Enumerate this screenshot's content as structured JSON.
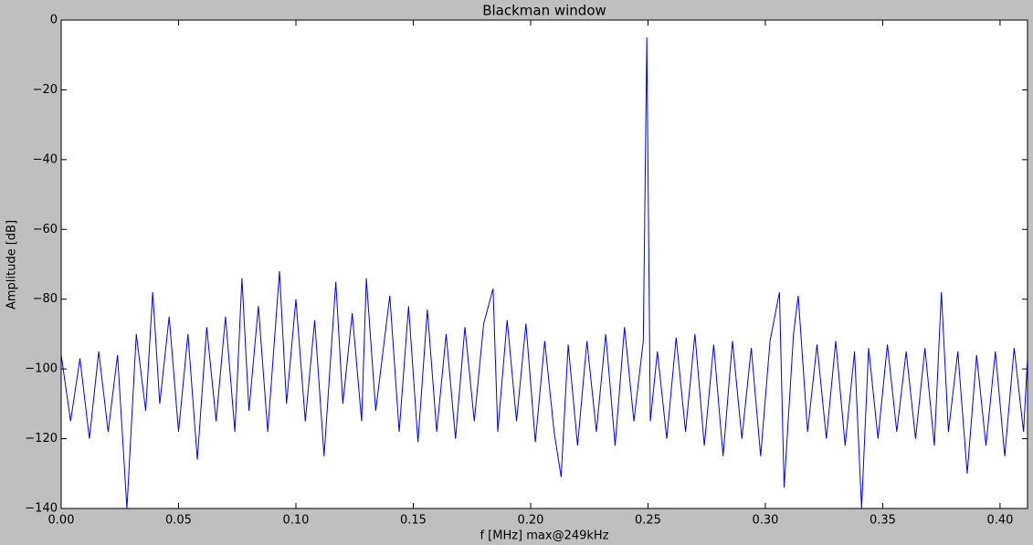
{
  "chart_data": {
    "type": "line",
    "title": "Blackman window",
    "x_label": "f [MHz] max@249kHz",
    "y_label": "Amplitude [dB]",
    "x": [
      0,
      0.004,
      0.008,
      0.012,
      0.016,
      0.02,
      0.024,
      0.028,
      0.032,
      0.036,
      0.039,
      0.042,
      0.046,
      0.05,
      0.054,
      0.058,
      0.062,
      0.066,
      0.07,
      0.074,
      0.077,
      0.08,
      0.084,
      0.088,
      0.093,
      0.096,
      0.1,
      0.104,
      0.108,
      0.112,
      0.117,
      0.12,
      0.124,
      0.128,
      0.13,
      0.134,
      0.14,
      0.144,
      0.148,
      0.152,
      0.156,
      0.16,
      0.164,
      0.168,
      0.172,
      0.176,
      0.18,
      0.184,
      0.186,
      0.19,
      0.194,
      0.198,
      0.202,
      0.206,
      0.21,
      0.213,
      0.216,
      0.22,
      0.224,
      0.228,
      0.232,
      0.236,
      0.24,
      0.244,
      0.248,
      0.2495,
      0.251,
      0.254,
      0.258,
      0.262,
      0.266,
      0.27,
      0.274,
      0.278,
      0.282,
      0.286,
      0.29,
      0.294,
      0.298,
      0.302,
      0.306,
      0.308,
      0.312,
      0.314,
      0.318,
      0.322,
      0.326,
      0.33,
      0.334,
      0.338,
      0.341,
      0.344,
      0.348,
      0.352,
      0.356,
      0.36,
      0.364,
      0.368,
      0.372,
      0.375,
      0.378,
      0.382,
      0.386,
      0.39,
      0.394,
      0.398,
      0.402,
      0.406,
      0.41,
      0.4117
    ],
    "series": [
      {
        "color": "#0000ff",
        "values": [
          -96,
          -115,
          -97,
          -120,
          -95,
          -118,
          -96,
          -140,
          -90,
          -112,
          -78,
          -110,
          -85,
          -118,
          -90,
          -126,
          -88,
          -115,
          -85,
          -118,
          -74,
          -112,
          -82,
          -118,
          -72,
          -110,
          -80,
          -115,
          -86,
          -125,
          -75,
          -110,
          -84,
          -115,
          -74,
          -112,
          -79,
          -118,
          -82,
          -121,
          -83,
          -118,
          -90,
          -120,
          -88,
          -115,
          -87,
          -77,
          -118,
          -86,
          -115,
          -87,
          -121,
          -92,
          -118,
          -131,
          -93,
          -122,
          -92,
          -118,
          -90,
          -122,
          -88,
          -115,
          -92,
          -5,
          -115,
          -95,
          -120,
          -91,
          -118,
          -90,
          -122,
          -93,
          -125,
          -92,
          -120,
          -94,
          -125,
          -92,
          -78,
          -134,
          -90,
          -79,
          -118,
          -93,
          -120,
          -92,
          -122,
          -95,
          -140,
          -94,
          -120,
          -93,
          -118,
          -95,
          -120,
          -94,
          -122,
          -78,
          -118,
          -95,
          -130,
          -96,
          -122,
          -95,
          -125,
          -94,
          -118,
          -97
        ]
      }
    ],
    "xlim": [
      0,
      0.4117
    ],
    "ylim": [
      -140,
      0
    ],
    "xticks": [
      {
        "value": 0,
        "label": "0.00"
      },
      {
        "value": 0.05,
        "label": "0.05"
      },
      {
        "value": 0.1,
        "label": "0.10"
      },
      {
        "value": 0.15,
        "label": "0.15"
      },
      {
        "value": 0.2,
        "label": "0.20"
      },
      {
        "value": 0.25,
        "label": "0.25"
      },
      {
        "value": 0.3,
        "label": "0.30"
      },
      {
        "value": 0.35,
        "label": "0.35"
      },
      {
        "value": 0.4,
        "label": "0.40"
      }
    ],
    "yticks": [
      {
        "value": -140,
        "label": "−140"
      },
      {
        "value": -120,
        "label": "−120"
      },
      {
        "value": -100,
        "label": "−100"
      },
      {
        "value": -80,
        "label": "−80"
      },
      {
        "value": -60,
        "label": "−60"
      },
      {
        "value": -40,
        "label": "−40"
      },
      {
        "value": -20,
        "label": "−20"
      },
      0
    ]
  }
}
